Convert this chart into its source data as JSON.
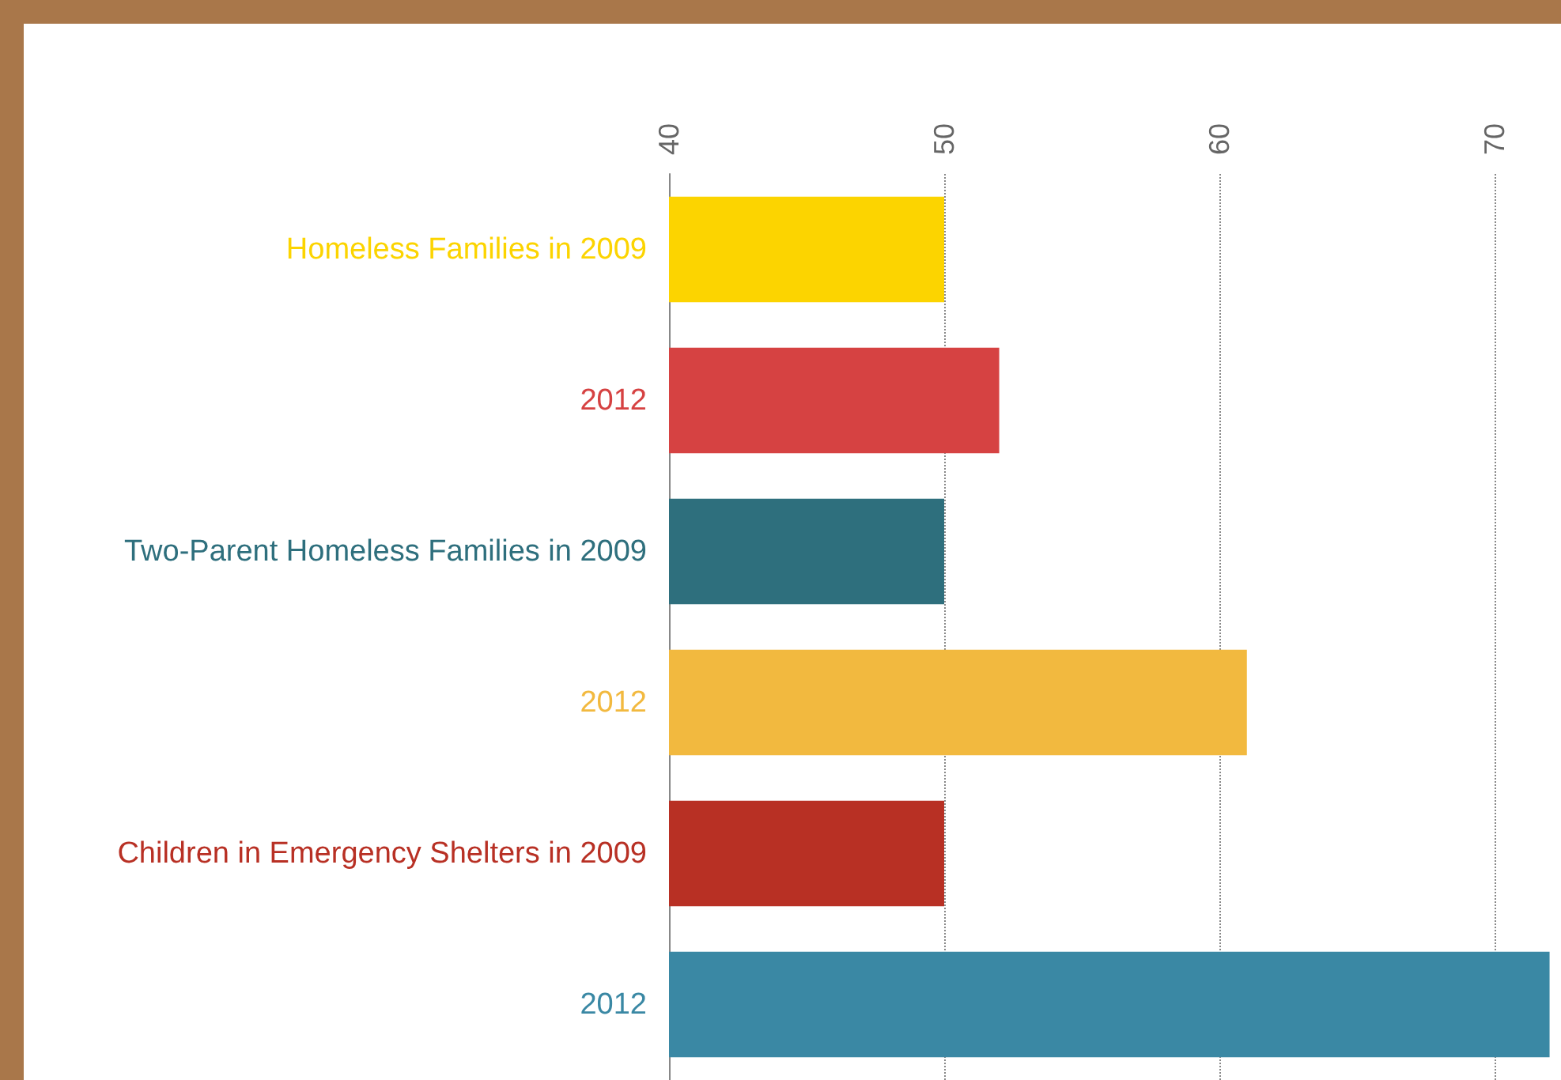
{
  "chart_data": {
    "type": "bar",
    "orientation": "horizontal",
    "categories": [
      "Homeless Families in 2009",
      "2012",
      "Two-Parent Homeless Families in 2009",
      "2012",
      "Children in Emergency Shelters in 2009",
      "2012"
    ],
    "values": [
      50,
      52,
      50,
      61,
      50,
      72
    ],
    "colors": [
      "#fcd400",
      "#d64242",
      "#2e6f7d",
      "#f2b93f",
      "#b83024",
      "#3a88a4"
    ],
    "xlim": [
      40,
      72.3
    ],
    "xticks": [
      40,
      50,
      60,
      70
    ],
    "grid": "x"
  }
}
